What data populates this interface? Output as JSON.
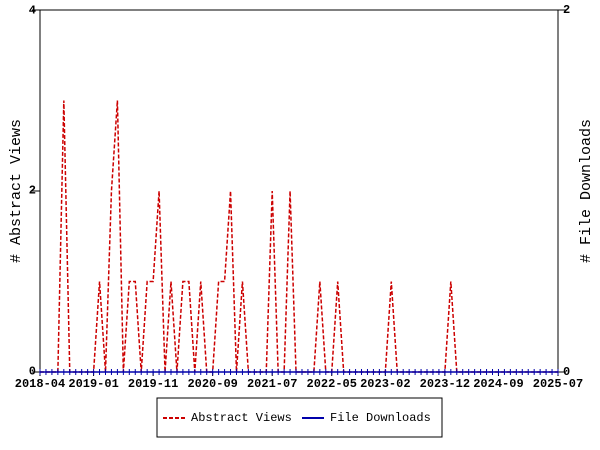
{
  "chart_data": {
    "type": "line",
    "ylabel": "# Abstract Views",
    "y2label": "# File Downloads",
    "categories": [
      "2018-04",
      null,
      null,
      null,
      null,
      null,
      null,
      null,
      null,
      "2019-01",
      null,
      null,
      null,
      null,
      null,
      null,
      null,
      null,
      null,
      "2019-11",
      null,
      null,
      null,
      null,
      null,
      null,
      null,
      null,
      null,
      "2020-09",
      null,
      null,
      null,
      null,
      null,
      null,
      null,
      null,
      null,
      "2021-07",
      null,
      null,
      null,
      null,
      null,
      null,
      null,
      null,
      null,
      "2022-05",
      null,
      null,
      null,
      null,
      null,
      null,
      null,
      null,
      "2023-02",
      null,
      null,
      null,
      null,
      null,
      null,
      null,
      null,
      null,
      "2023-12",
      null,
      null,
      null,
      null,
      null,
      null,
      null,
      null,
      "2024-09",
      null,
      null,
      null,
      null,
      null,
      null,
      null,
      null,
      null,
      "2025-07"
    ],
    "series": [
      {
        "name": "Abstract Views",
        "color": "#cc0000",
        "axis": "y",
        "values": [
          0,
          0,
          0,
          0,
          3,
          0,
          0,
          0,
          0,
          0,
          1,
          0,
          2,
          3,
          0,
          1,
          1,
          0,
          1,
          1,
          2,
          0,
          1,
          0,
          1,
          1,
          0,
          1,
          0,
          0,
          1,
          1,
          2,
          0,
          1,
          0,
          0,
          0,
          0,
          2,
          0,
          0,
          2,
          0,
          0,
          0,
          0,
          1,
          0,
          0,
          1,
          0,
          0,
          0,
          0,
          0,
          0,
          0,
          0,
          1,
          0,
          0,
          0,
          0,
          0,
          0,
          0,
          0,
          0,
          1,
          0,
          0,
          0,
          0,
          0,
          0,
          0,
          0,
          0,
          0,
          0,
          0,
          0,
          0,
          0,
          0,
          0,
          0
        ]
      },
      {
        "name": "File Downloads",
        "color": "#0000aa",
        "axis": "y2",
        "values": [
          0,
          0,
          0,
          0,
          0,
          0,
          0,
          0,
          0,
          0,
          0,
          0,
          0,
          0,
          0,
          0,
          0,
          0,
          0,
          0,
          0,
          0,
          0,
          0,
          0,
          0,
          0,
          0,
          0,
          0,
          0,
          0,
          0,
          0,
          0,
          0,
          0,
          0,
          0,
          0,
          0,
          0,
          0,
          0,
          0,
          0,
          0,
          0,
          0,
          0,
          0,
          0,
          0,
          0,
          0,
          0,
          0,
          0,
          0,
          0,
          0,
          0,
          0,
          0,
          0,
          0,
          0,
          0,
          0,
          0,
          0,
          0,
          0,
          0,
          0,
          0,
          0,
          0,
          0,
          0,
          0,
          0,
          0,
          0,
          0,
          0,
          0,
          0
        ]
      }
    ],
    "ylim": [
      0,
      4
    ],
    "yticks": [
      0,
      2,
      4
    ],
    "y2lim": [
      0,
      2
    ],
    "y2ticks": [
      0,
      2
    ],
    "legend": "bottom"
  }
}
